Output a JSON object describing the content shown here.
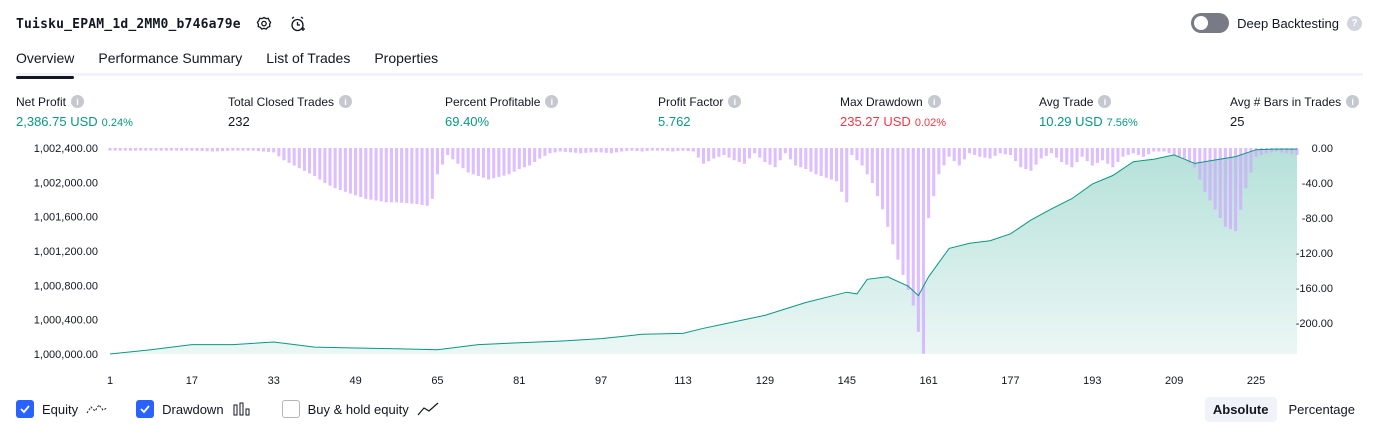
{
  "header": {
    "strategy_title": "Tuisku_EPAM_1d_2MM0_b746a79e",
    "settings_icon": "gear-icon",
    "alert_icon": "alarm-clock-plus-icon",
    "deep_backtesting_label": "Deep Backtesting",
    "deep_backtesting_enabled": false
  },
  "tabs": [
    {
      "label": "Overview",
      "active": true
    },
    {
      "label": "Performance Summary",
      "active": false
    },
    {
      "label": "List of Trades",
      "active": false
    },
    {
      "label": "Properties",
      "active": false
    }
  ],
  "metrics": {
    "net_profit": {
      "label": "Net Profit",
      "value": "2,386.75 USD",
      "sub": "0.24%"
    },
    "total_closed_trades": {
      "label": "Total Closed Trades",
      "value": "232"
    },
    "percent_profitable": {
      "label": "Percent Profitable",
      "value": "69.40%"
    },
    "profit_factor": {
      "label": "Profit Factor",
      "value": "5.762"
    },
    "max_drawdown": {
      "label": "Max Drawdown",
      "value": "235.27 USD",
      "sub": "0.02%"
    },
    "avg_trade": {
      "label": "Avg Trade",
      "value": "10.29 USD",
      "sub": "7.56%"
    },
    "avg_bars": {
      "label": "Avg # Bars in Trades",
      "value": "25"
    }
  },
  "chart_data": {
    "type": "area",
    "x_ticks": [
      "1",
      "17",
      "33",
      "49",
      "65",
      "81",
      "97",
      "113",
      "129",
      "145",
      "161",
      "177",
      "193",
      "209",
      "225"
    ],
    "left_axis": {
      "ticks": [
        "1,002,400.00",
        "1,002,000.00",
        "1,001,600.00",
        "1,001,200.00",
        "1,000,800.00",
        "1,000,400.00",
        "1,000,000.00"
      ],
      "range": [
        1000000,
        1002400
      ]
    },
    "right_axis": {
      "ticks": [
        "0.00",
        "-40.00",
        "-80.00",
        "-120.00",
        "-160.00",
        "-200.00"
      ],
      "range": [
        0,
        -235.27
      ]
    },
    "series": [
      {
        "name": "Equity",
        "color": "#089981",
        "points": [
          [
            1,
            1000000
          ],
          [
            9,
            1000050
          ],
          [
            17,
            1000110
          ],
          [
            25,
            1000110
          ],
          [
            33,
            1000140
          ],
          [
            41,
            1000080
          ],
          [
            49,
            1000070
          ],
          [
            57,
            1000060
          ],
          [
            65,
            1000050
          ],
          [
            73,
            1000110
          ],
          [
            81,
            1000130
          ],
          [
            89,
            1000150
          ],
          [
            97,
            1000180
          ],
          [
            105,
            1000230
          ],
          [
            113,
            1000240
          ],
          [
            117,
            1000300
          ],
          [
            121,
            1000350
          ],
          [
            129,
            1000450
          ],
          [
            137,
            1000600
          ],
          [
            145,
            1000720
          ],
          [
            147,
            1000700
          ],
          [
            149,
            1000870
          ],
          [
            153,
            1000900
          ],
          [
            157,
            1000790
          ],
          [
            159,
            1000680
          ],
          [
            161,
            1000900
          ],
          [
            165,
            1001230
          ],
          [
            169,
            1001290
          ],
          [
            173,
            1001320
          ],
          [
            177,
            1001400
          ],
          [
            181,
            1001560
          ],
          [
            185,
            1001690
          ],
          [
            189,
            1001810
          ],
          [
            193,
            1001980
          ],
          [
            197,
            1002080
          ],
          [
            201,
            1002240
          ],
          [
            205,
            1002270
          ],
          [
            209,
            1002320
          ],
          [
            213,
            1002220
          ],
          [
            217,
            1002260
          ],
          [
            221,
            1002300
          ],
          [
            225,
            1002380
          ],
          [
            229,
            1002386.75
          ],
          [
            233,
            1002386.75
          ]
        ]
      },
      {
        "name": "Drawdown",
        "color": "#d1a8ff",
        "points": [
          [
            1,
            -3
          ],
          [
            9,
            -3
          ],
          [
            17,
            -3
          ],
          [
            21,
            -4
          ],
          [
            25,
            -3
          ],
          [
            29,
            -3
          ],
          [
            33,
            -5
          ],
          [
            35,
            -14
          ],
          [
            37,
            -20
          ],
          [
            39,
            -26
          ],
          [
            41,
            -32
          ],
          [
            43,
            -40
          ],
          [
            45,
            -46
          ],
          [
            47,
            -50
          ],
          [
            49,
            -54
          ],
          [
            51,
            -58
          ],
          [
            53,
            -60
          ],
          [
            55,
            -62
          ],
          [
            57,
            -62
          ],
          [
            59,
            -63
          ],
          [
            61,
            -64
          ],
          [
            63,
            -66
          ],
          [
            64,
            -58
          ],
          [
            65,
            -30
          ],
          [
            67,
            -8
          ],
          [
            69,
            -18
          ],
          [
            71,
            -28
          ],
          [
            73,
            -32
          ],
          [
            75,
            -36
          ],
          [
            77,
            -33
          ],
          [
            79,
            -30
          ],
          [
            81,
            -24
          ],
          [
            83,
            -20
          ],
          [
            85,
            -12
          ],
          [
            87,
            -6
          ],
          [
            89,
            -4
          ],
          [
            91,
            -5
          ],
          [
            93,
            -6
          ],
          [
            95,
            -5
          ],
          [
            97,
            -5
          ],
          [
            99,
            -6
          ],
          [
            101,
            -4
          ],
          [
            103,
            -3
          ],
          [
            105,
            -4
          ],
          [
            107,
            -3
          ],
          [
            109,
            -3
          ],
          [
            111,
            -4
          ],
          [
            113,
            -3
          ],
          [
            115,
            -4
          ],
          [
            117,
            -18
          ],
          [
            119,
            -12
          ],
          [
            121,
            -8
          ],
          [
            123,
            -14
          ],
          [
            125,
            -18
          ],
          [
            127,
            -6
          ],
          [
            129,
            -16
          ],
          [
            131,
            -22
          ],
          [
            133,
            -6
          ],
          [
            135,
            -20
          ],
          [
            137,
            -24
          ],
          [
            139,
            -30
          ],
          [
            141,
            -34
          ],
          [
            143,
            -38
          ],
          [
            145,
            -62
          ],
          [
            146,
            -8
          ],
          [
            148,
            -20
          ],
          [
            150,
            -40
          ],
          [
            152,
            -70
          ],
          [
            154,
            -110
          ],
          [
            156,
            -145
          ],
          [
            157,
            -162
          ],
          [
            158,
            -180
          ],
          [
            159,
            -210
          ],
          [
            160,
            -235
          ],
          [
            161,
            -80
          ],
          [
            163,
            -30
          ],
          [
            165,
            -10
          ],
          [
            167,
            -20
          ],
          [
            169,
            -6
          ],
          [
            171,
            -10
          ],
          [
            173,
            -12
          ],
          [
            175,
            -6
          ],
          [
            177,
            -8
          ],
          [
            179,
            -22
          ],
          [
            181,
            -26
          ],
          [
            183,
            -12
          ],
          [
            185,
            -6
          ],
          [
            187,
            -16
          ],
          [
            189,
            -22
          ],
          [
            191,
            -10
          ],
          [
            193,
            -20
          ],
          [
            195,
            -14
          ],
          [
            197,
            -22
          ],
          [
            199,
            -10
          ],
          [
            201,
            -6
          ],
          [
            203,
            -10
          ],
          [
            205,
            -4
          ],
          [
            207,
            -4
          ],
          [
            209,
            -8
          ],
          [
            211,
            -12
          ],
          [
            213,
            -22
          ],
          [
            215,
            -50
          ],
          [
            217,
            -70
          ],
          [
            219,
            -90
          ],
          [
            221,
            -95
          ],
          [
            223,
            -46
          ],
          [
            225,
            -10
          ],
          [
            227,
            -6
          ],
          [
            229,
            -4
          ],
          [
            231,
            -6
          ],
          [
            233,
            -8
          ]
        ]
      }
    ],
    "legend": [
      {
        "label": "Equity",
        "checked": true,
        "icon": "equity-line-icon"
      },
      {
        "label": "Drawdown",
        "checked": true,
        "icon": "drawdown-bars-icon"
      },
      {
        "label": "Buy & hold equity",
        "checked": false,
        "icon": "buy-hold-line-icon"
      }
    ]
  },
  "view_mode": {
    "options": [
      "Absolute",
      "Percentage"
    ],
    "selected": "Absolute"
  }
}
